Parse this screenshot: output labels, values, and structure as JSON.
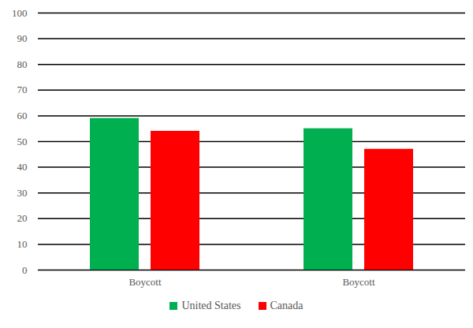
{
  "chart_data": {
    "type": "bar",
    "categories": [
      "Boycott",
      "Boycott"
    ],
    "series": [
      {
        "name": "United States",
        "color": "#00b050",
        "values": [
          59,
          55
        ]
      },
      {
        "name": "Canada",
        "color": "#ff0000",
        "values": [
          54,
          47
        ]
      }
    ],
    "ylim": [
      0,
      100
    ],
    "yticks": [
      0,
      10,
      20,
      30,
      40,
      50,
      60,
      70,
      80,
      90,
      100
    ],
    "grid": true,
    "legend": "bottom"
  }
}
